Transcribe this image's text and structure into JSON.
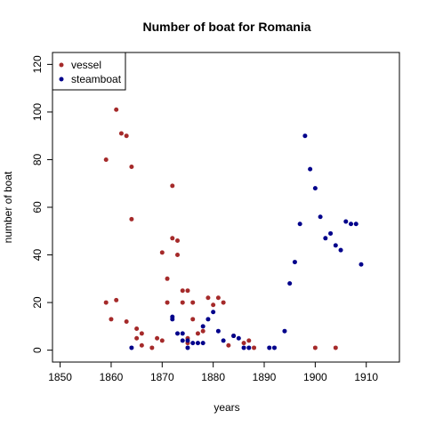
{
  "chart_data": {
    "type": "scatter",
    "title": "Number of boat for Romania",
    "xlabel": "years",
    "ylabel": "number of boat",
    "xlim": [
      1848.5,
      1916.5
    ],
    "ylim": [
      -5,
      125
    ],
    "xticks": [
      1850,
      1860,
      1870,
      1880,
      1890,
      1900,
      1910
    ],
    "yticks": [
      0,
      20,
      40,
      60,
      80,
      100,
      120
    ],
    "grid": false,
    "legend_position": "top-left",
    "series": [
      {
        "name": "vessel",
        "color": "#a52a2a",
        "points": [
          [
            1859,
            80
          ],
          [
            1859,
            20
          ],
          [
            1860,
            13
          ],
          [
            1861,
            101
          ],
          [
            1861,
            21
          ],
          [
            1862,
            91
          ],
          [
            1863,
            90
          ],
          [
            1863,
            12
          ],
          [
            1864,
            77
          ],
          [
            1864,
            55
          ],
          [
            1865,
            9
          ],
          [
            1865,
            5
          ],
          [
            1866,
            7
          ],
          [
            1866,
            2
          ],
          [
            1868,
            1
          ],
          [
            1869,
            5
          ],
          [
            1870,
            4
          ],
          [
            1870,
            41
          ],
          [
            1871,
            30
          ],
          [
            1871,
            20
          ],
          [
            1872,
            69
          ],
          [
            1872,
            47
          ],
          [
            1873,
            46
          ],
          [
            1873,
            40
          ],
          [
            1874,
            25
          ],
          [
            1874,
            20
          ],
          [
            1875,
            25
          ],
          [
            1875,
            5
          ],
          [
            1875,
            3
          ],
          [
            1876,
            20
          ],
          [
            1876,
            13
          ],
          [
            1877,
            7
          ],
          [
            1878,
            8
          ],
          [
            1879,
            22
          ],
          [
            1880,
            19
          ],
          [
            1881,
            22
          ],
          [
            1882,
            20
          ],
          [
            1883,
            2
          ],
          [
            1884,
            6
          ],
          [
            1886,
            3
          ],
          [
            1887,
            4
          ],
          [
            1888,
            1
          ],
          [
            1900,
            1
          ],
          [
            1904,
            1
          ]
        ]
      },
      {
        "name": "steamboat",
        "color": "#00008b",
        "points": [
          [
            1864,
            1
          ],
          [
            1872,
            14
          ],
          [
            1872,
            13
          ],
          [
            1873,
            7
          ],
          [
            1874,
            7
          ],
          [
            1874,
            4
          ],
          [
            1875,
            4
          ],
          [
            1875,
            1
          ],
          [
            1876,
            3
          ],
          [
            1877,
            3
          ],
          [
            1878,
            3
          ],
          [
            1878,
            10
          ],
          [
            1879,
            13
          ],
          [
            1880,
            16
          ],
          [
            1881,
            8
          ],
          [
            1882,
            4
          ],
          [
            1884,
            6
          ],
          [
            1885,
            5
          ],
          [
            1886,
            1
          ],
          [
            1887,
            1
          ],
          [
            1891,
            1
          ],
          [
            1892,
            1
          ],
          [
            1894,
            8
          ],
          [
            1895,
            28
          ],
          [
            1896,
            37
          ],
          [
            1897,
            53
          ],
          [
            1898,
            90
          ],
          [
            1899,
            76
          ],
          [
            1900,
            68
          ],
          [
            1901,
            56
          ],
          [
            1902,
            47
          ],
          [
            1903,
            49
          ],
          [
            1904,
            44
          ],
          [
            1905,
            42
          ],
          [
            1906,
            54
          ],
          [
            1907,
            53
          ],
          [
            1908,
            53
          ],
          [
            1909,
            36
          ]
        ]
      }
    ]
  }
}
